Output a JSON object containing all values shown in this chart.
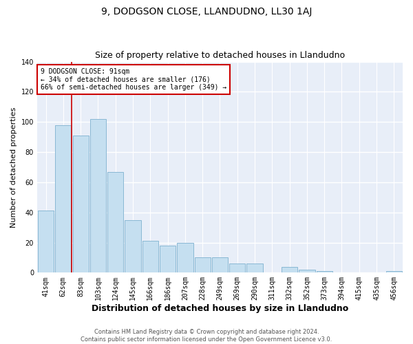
{
  "title": "9, DODGSON CLOSE, LLANDUDNO, LL30 1AJ",
  "subtitle": "Size of property relative to detached houses in Llandudno",
  "xlabel": "Distribution of detached houses by size in Llandudno",
  "ylabel": "Number of detached properties",
  "categories": [
    "41sqm",
    "62sqm",
    "83sqm",
    "103sqm",
    "124sqm",
    "145sqm",
    "166sqm",
    "186sqm",
    "207sqm",
    "228sqm",
    "249sqm",
    "269sqm",
    "290sqm",
    "311sqm",
    "332sqm",
    "352sqm",
    "373sqm",
    "394sqm",
    "415sqm",
    "435sqm",
    "456sqm"
  ],
  "values": [
    41,
    98,
    91,
    102,
    67,
    35,
    21,
    18,
    20,
    10,
    10,
    6,
    6,
    0,
    4,
    2,
    1,
    0,
    0,
    0,
    1
  ],
  "bar_color": "#c5dff0",
  "bar_edge_color": "#89b8d4",
  "background_color": "#e8eef8",
  "grid_color": "#ffffff",
  "annotation_text": "9 DODGSON CLOSE: 91sqm\n← 34% of detached houses are smaller (176)\n66% of semi-detached houses are larger (349) →",
  "annotation_box_edge": "#cc0000",
  "vline_color": "#cc0000",
  "vline_x": 1.5,
  "ylim": [
    0,
    140
  ],
  "yticks": [
    0,
    20,
    40,
    60,
    80,
    100,
    120,
    140
  ],
  "footnote": "Contains HM Land Registry data © Crown copyright and database right 2024.\nContains public sector information licensed under the Open Government Licence v3.0.",
  "title_fontsize": 10,
  "subtitle_fontsize": 9,
  "ylabel_fontsize": 8,
  "xlabel_fontsize": 9,
  "tick_fontsize": 7,
  "annotation_fontsize": 7,
  "footnote_fontsize": 6
}
